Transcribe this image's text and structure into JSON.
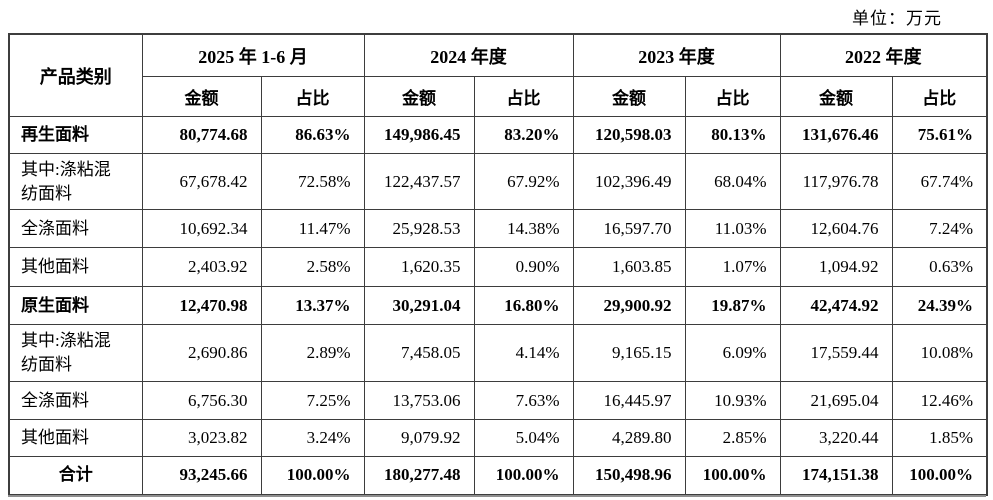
{
  "unit_label": "单位：万元",
  "table": {
    "col1_header": "产品类别",
    "period_headers": [
      "2025 年 1-6 月",
      "2024 年度",
      "2023 年度",
      "2022 年度"
    ],
    "sub_headers": {
      "amount": "金额",
      "ratio": "占比"
    },
    "rows": [
      {
        "label": "再生面料",
        "bold": true,
        "center": false,
        "values": [
          "80,774.68",
          "86.63%",
          "149,986.45",
          "83.20%",
          "120,598.03",
          "80.13%",
          "131,676.46",
          "75.61%"
        ]
      },
      {
        "label": "其中:涤粘混\n纺面料",
        "bold": false,
        "center": false,
        "values": [
          "67,678.42",
          "72.58%",
          "122,437.57",
          "67.92%",
          "102,396.49",
          "68.04%",
          "117,976.78",
          "67.74%"
        ]
      },
      {
        "label": "全涤面料",
        "bold": false,
        "center": false,
        "values": [
          "10,692.34",
          "11.47%",
          "25,928.53",
          "14.38%",
          "16,597.70",
          "11.03%",
          "12,604.76",
          "7.24%"
        ]
      },
      {
        "label": "其他面料",
        "bold": false,
        "center": false,
        "values": [
          "2,403.92",
          "2.58%",
          "1,620.35",
          "0.90%",
          "1,603.85",
          "1.07%",
          "1,094.92",
          "0.63%"
        ]
      },
      {
        "label": "原生面料",
        "bold": true,
        "center": false,
        "values": [
          "12,470.98",
          "13.37%",
          "30,291.04",
          "16.80%",
          "29,900.92",
          "19.87%",
          "42,474.92",
          "24.39%"
        ]
      },
      {
        "label": "其中:涤粘混\n纺面料",
        "bold": false,
        "center": false,
        "values": [
          "2,690.86",
          "2.89%",
          "7,458.05",
          "4.14%",
          "9,165.15",
          "6.09%",
          "17,559.44",
          "10.08%"
        ]
      },
      {
        "label": "全涤面料",
        "bold": false,
        "center": false,
        "values": [
          "6,756.30",
          "7.25%",
          "13,753.06",
          "7.63%",
          "16,445.97",
          "10.93%",
          "21,695.04",
          "12.46%"
        ]
      },
      {
        "label": "其他面料",
        "bold": false,
        "center": false,
        "values": [
          "3,023.82",
          "3.24%",
          "9,079.92",
          "5.04%",
          "4,289.80",
          "2.85%",
          "3,220.44",
          "1.85%"
        ]
      },
      {
        "label": "合计",
        "bold": true,
        "center": true,
        "values": [
          "93,245.66",
          "100.00%",
          "180,277.48",
          "100.00%",
          "150,498.96",
          "100.00%",
          "174,151.38",
          "100.00%"
        ]
      }
    ]
  }
}
